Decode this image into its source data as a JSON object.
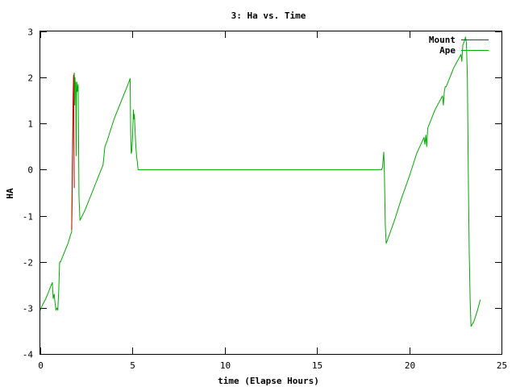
{
  "chart_data": {
    "type": "line",
    "title": "3: Ha vs. Time",
    "xlabel": "time (Elapse Hours)",
    "ylabel": "HA",
    "xlim": [
      0,
      25
    ],
    "ylim": [
      -4,
      3
    ],
    "x_ticks": [
      0,
      5,
      10,
      15,
      20,
      25
    ],
    "y_ticks": [
      -4,
      -3,
      -2,
      -1,
      0,
      1,
      2,
      3
    ],
    "grid": false,
    "legend_position": "top-right",
    "series": [
      {
        "name": "Mount",
        "color": "#cc0000",
        "points": [
          [
            1.7,
            -1.3
          ],
          [
            1.72,
            -0.6
          ],
          [
            1.74,
            0.2
          ],
          [
            1.76,
            0.9
          ],
          [
            1.78,
            1.6
          ],
          [
            1.8,
            2.05
          ],
          [
            1.82,
            1.2
          ],
          [
            1.84,
            -0.4
          ]
        ]
      },
      {
        "name": "Ape",
        "color": "#00aa00",
        "points": [
          [
            0.0,
            -3.05
          ],
          [
            0.1,
            -2.95
          ],
          [
            0.3,
            -2.8
          ],
          [
            0.5,
            -2.6
          ],
          [
            0.6,
            -2.5
          ],
          [
            0.65,
            -2.45
          ],
          [
            0.7,
            -2.8
          ],
          [
            0.75,
            -2.7
          ],
          [
            0.8,
            -2.9
          ],
          [
            0.85,
            -3.05
          ],
          [
            0.9,
            -3.0
          ],
          [
            0.95,
            -3.05
          ],
          [
            1.0,
            -2.6
          ],
          [
            1.05,
            -2.0
          ],
          [
            1.1,
            -2.0
          ],
          [
            1.3,
            -1.8
          ],
          [
            1.5,
            -1.6
          ],
          [
            1.65,
            -1.4
          ],
          [
            1.7,
            -1.35
          ],
          [
            1.72,
            -0.5
          ],
          [
            1.75,
            0.3
          ],
          [
            1.78,
            1.2
          ],
          [
            1.82,
            2.05
          ],
          [
            1.84,
            2.1
          ],
          [
            1.86,
            1.4
          ],
          [
            1.88,
            2.0
          ],
          [
            1.9,
            1.8
          ],
          [
            1.92,
            1.9
          ],
          [
            1.94,
            0.3
          ],
          [
            1.96,
            1.6
          ],
          [
            1.98,
            1.9
          ],
          [
            2.0,
            1.7
          ],
          [
            2.05,
            1.85
          ],
          [
            2.1,
            -0.6
          ],
          [
            2.15,
            -1.1
          ],
          [
            2.4,
            -0.9
          ],
          [
            2.8,
            -0.5
          ],
          [
            3.2,
            -0.1
          ],
          [
            3.4,
            0.1
          ],
          [
            3.5,
            0.5
          ],
          [
            3.6,
            0.6
          ],
          [
            4.0,
            1.1
          ],
          [
            4.4,
            1.5
          ],
          [
            4.8,
            1.9
          ],
          [
            4.87,
            1.98
          ],
          [
            4.9,
            0.8
          ],
          [
            4.93,
            0.35
          ],
          [
            4.96,
            0.4
          ],
          [
            5.0,
            0.7
          ],
          [
            5.05,
            1.3
          ],
          [
            5.08,
            1.1
          ],
          [
            5.1,
            1.2
          ],
          [
            5.13,
            0.9
          ],
          [
            5.18,
            0.5
          ],
          [
            5.22,
            0.3
          ],
          [
            5.25,
            0.2
          ],
          [
            5.3,
            0.0
          ],
          [
            10.0,
            0.0
          ],
          [
            15.0,
            0.0
          ],
          [
            18.5,
            0.0
          ],
          [
            18.55,
            0.05
          ],
          [
            18.62,
            0.38
          ],
          [
            18.65,
            0.0
          ],
          [
            18.7,
            -1.2
          ],
          [
            18.75,
            -1.6
          ],
          [
            18.8,
            -1.55
          ],
          [
            19.2,
            -1.1
          ],
          [
            19.6,
            -0.6
          ],
          [
            20.0,
            -0.15
          ],
          [
            20.4,
            0.35
          ],
          [
            20.8,
            0.7
          ],
          [
            20.85,
            0.55
          ],
          [
            20.9,
            0.75
          ],
          [
            20.95,
            0.5
          ],
          [
            21.0,
            0.9
          ],
          [
            21.4,
            1.3
          ],
          [
            21.8,
            1.6
          ],
          [
            21.85,
            1.4
          ],
          [
            21.9,
            1.7
          ],
          [
            21.95,
            1.8
          ],
          [
            22.0,
            1.8
          ],
          [
            22.4,
            2.2
          ],
          [
            22.8,
            2.5
          ],
          [
            22.85,
            2.35
          ],
          [
            22.9,
            2.7
          ],
          [
            23.0,
            2.8
          ],
          [
            23.05,
            2.88
          ],
          [
            23.1,
            2.75
          ],
          [
            23.15,
            2.0
          ],
          [
            23.2,
            0.0
          ],
          [
            23.25,
            -1.8
          ],
          [
            23.3,
            -2.8
          ],
          [
            23.35,
            -3.4
          ],
          [
            23.5,
            -3.3
          ],
          [
            23.7,
            -3.05
          ],
          [
            23.85,
            -2.82
          ]
        ]
      }
    ]
  }
}
